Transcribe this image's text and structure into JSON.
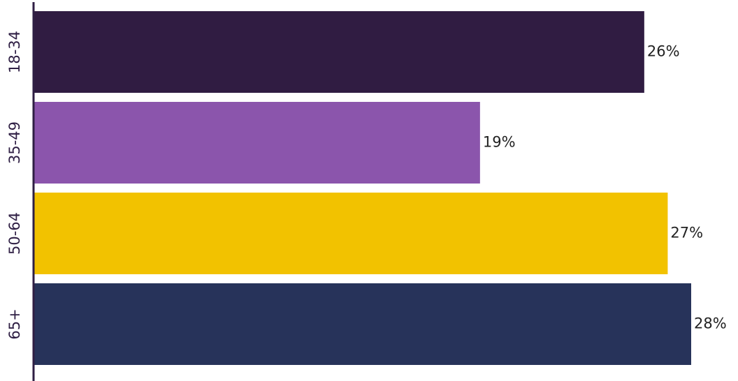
{
  "chart_data": {
    "type": "bar",
    "orientation": "horizontal",
    "categories": [
      "18-34",
      "35-49",
      "50-64",
      "65+"
    ],
    "values": [
      26,
      19,
      27,
      28
    ],
    "value_labels": [
      "26%",
      "19%",
      "27%",
      "28%"
    ],
    "colors": [
      "#301c42",
      "#8b55ac",
      "#f2c200",
      "#27335a"
    ],
    "axis_color": "#2f1f44",
    "xlim": [
      0,
      28
    ],
    "title": "",
    "xlabel": "",
    "ylabel": "",
    "grid": false,
    "legend": "none"
  }
}
